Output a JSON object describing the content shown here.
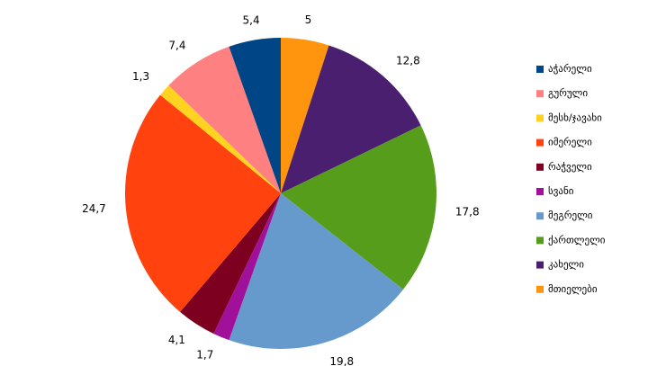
{
  "chart_data": {
    "type": "pie",
    "categories": [
      "აჭარელი",
      "გურული",
      "მესხ/ჯავახი",
      "იმერელი",
      "რაჭველი",
      "სვანი",
      "მეგრელი",
      "ქართლელი",
      "კახელი",
      "მთიელები"
    ],
    "values": [
      5.4,
      7.4,
      1.3,
      24.7,
      4.1,
      1.7,
      19.8,
      17.8,
      12.8,
      5
    ],
    "value_labels": [
      "5,4",
      "7,4",
      "1,3",
      "24,7",
      "4,1",
      "1,7",
      "19,8",
      "17,8",
      "12,8",
      "5"
    ],
    "colors": [
      "#004586",
      "#ff8080",
      "#ffd320",
      "#ff420e",
      "#7e0021",
      "#a0109a",
      "#6699cc",
      "#579d1c",
      "#4b1f6f",
      "#ff950e"
    ],
    "legend": "right"
  }
}
